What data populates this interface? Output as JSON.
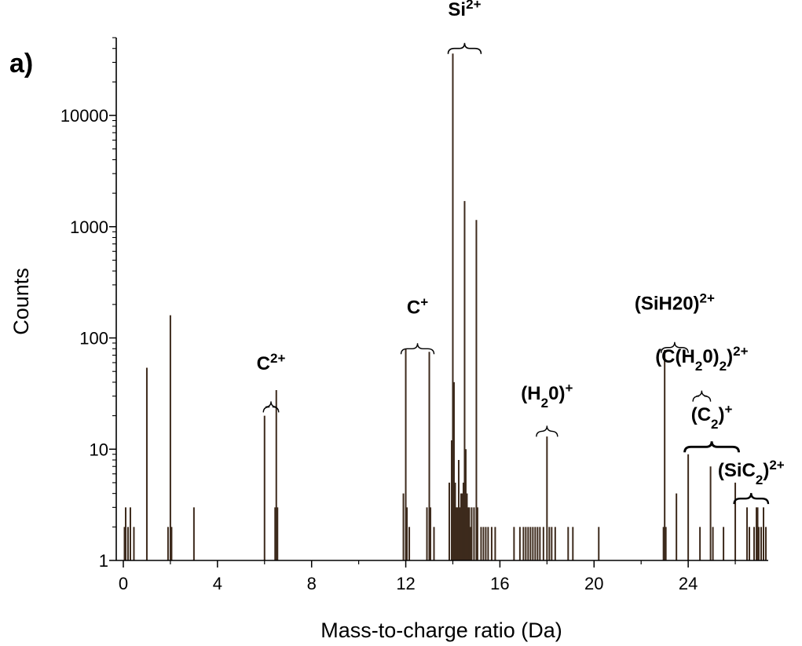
{
  "chart_data": {
    "type": "bar",
    "panel_label": "a)",
    "title": "",
    "xlabel": "Mass-to-charge ratio (Da)",
    "ylabel": "Counts",
    "xlim": [
      -0.3,
      27.4
    ],
    "ylim": [
      1,
      50000
    ],
    "y_scale": "log",
    "grid": false,
    "legend": "none",
    "bar_color": "#3d2a1c",
    "x_ticks": [
      0,
      4,
      8,
      12,
      16,
      20,
      24
    ],
    "x_tick_labels": [
      "0",
      "4",
      "8",
      "12",
      "16",
      "20",
      "24"
    ],
    "y_ticks": [
      1,
      10,
      100,
      1000,
      10000
    ],
    "y_tick_labels": [
      "1",
      "10",
      "100",
      "1000",
      "10000"
    ],
    "peaks": [
      {
        "x": 0.05,
        "y": 2
      },
      {
        "x": 0.1,
        "y": 3
      },
      {
        "x": 0.2,
        "y": 2
      },
      {
        "x": 0.3,
        "y": 3
      },
      {
        "x": 0.45,
        "y": 2
      },
      {
        "x": 1.0,
        "y": 54
      },
      {
        "x": 1.9,
        "y": 2
      },
      {
        "x": 2.0,
        "y": 160
      },
      {
        "x": 2.05,
        "y": 2
      },
      {
        "x": 3.0,
        "y": 3
      },
      {
        "x": 6.0,
        "y": 20
      },
      {
        "x": 6.45,
        "y": 3
      },
      {
        "x": 6.5,
        "y": 34
      },
      {
        "x": 6.55,
        "y": 3
      },
      {
        "x": 11.9,
        "y": 4
      },
      {
        "x": 12.0,
        "y": 80
      },
      {
        "x": 12.05,
        "y": 3
      },
      {
        "x": 12.15,
        "y": 2
      },
      {
        "x": 12.9,
        "y": 3
      },
      {
        "x": 13.0,
        "y": 75
      },
      {
        "x": 13.05,
        "y": 3
      },
      {
        "x": 13.2,
        "y": 2
      },
      {
        "x": 13.85,
        "y": 5
      },
      {
        "x": 13.95,
        "y": 12
      },
      {
        "x": 14.0,
        "y": 36000
      },
      {
        "x": 14.05,
        "y": 40
      },
      {
        "x": 14.1,
        "y": 5
      },
      {
        "x": 14.15,
        "y": 3
      },
      {
        "x": 14.2,
        "y": 3
      },
      {
        "x": 14.25,
        "y": 8
      },
      {
        "x": 14.3,
        "y": 3
      },
      {
        "x": 14.35,
        "y": 4
      },
      {
        "x": 14.4,
        "y": 4
      },
      {
        "x": 14.45,
        "y": 5
      },
      {
        "x": 14.5,
        "y": 1700
      },
      {
        "x": 14.55,
        "y": 10
      },
      {
        "x": 14.6,
        "y": 4
      },
      {
        "x": 14.65,
        "y": 3
      },
      {
        "x": 14.7,
        "y": 3
      },
      {
        "x": 14.75,
        "y": 2
      },
      {
        "x": 14.8,
        "y": 3
      },
      {
        "x": 14.9,
        "y": 3
      },
      {
        "x": 15.0,
        "y": 1150
      },
      {
        "x": 15.05,
        "y": 3
      },
      {
        "x": 15.2,
        "y": 2
      },
      {
        "x": 15.3,
        "y": 2
      },
      {
        "x": 15.4,
        "y": 2
      },
      {
        "x": 15.5,
        "y": 2
      },
      {
        "x": 15.65,
        "y": 2
      },
      {
        "x": 15.8,
        "y": 2
      },
      {
        "x": 16.6,
        "y": 2
      },
      {
        "x": 16.85,
        "y": 2
      },
      {
        "x": 17.0,
        "y": 2
      },
      {
        "x": 17.1,
        "y": 2
      },
      {
        "x": 17.2,
        "y": 2
      },
      {
        "x": 17.3,
        "y": 2
      },
      {
        "x": 17.4,
        "y": 2
      },
      {
        "x": 17.5,
        "y": 2
      },
      {
        "x": 17.6,
        "y": 2
      },
      {
        "x": 17.7,
        "y": 2
      },
      {
        "x": 17.85,
        "y": 2
      },
      {
        "x": 18.0,
        "y": 13
      },
      {
        "x": 18.1,
        "y": 2
      },
      {
        "x": 18.2,
        "y": 2
      },
      {
        "x": 18.35,
        "y": 2
      },
      {
        "x": 18.9,
        "y": 2
      },
      {
        "x": 19.1,
        "y": 2
      },
      {
        "x": 20.2,
        "y": 2
      },
      {
        "x": 22.95,
        "y": 2
      },
      {
        "x": 23.0,
        "y": 78
      },
      {
        "x": 23.05,
        "y": 2
      },
      {
        "x": 23.5,
        "y": 4
      },
      {
        "x": 24.0,
        "y": 9
      },
      {
        "x": 24.5,
        "y": 2
      },
      {
        "x": 24.95,
        "y": 7
      },
      {
        "x": 25.05,
        "y": 2
      },
      {
        "x": 25.5,
        "y": 2
      },
      {
        "x": 26.0,
        "y": 5
      },
      {
        "x": 26.5,
        "y": 3
      },
      {
        "x": 26.6,
        "y": 2
      },
      {
        "x": 26.8,
        "y": 2
      },
      {
        "x": 26.9,
        "y": 3
      },
      {
        "x": 26.95,
        "y": 3
      },
      {
        "x": 27.0,
        "y": 2
      },
      {
        "x": 27.1,
        "y": 2
      },
      {
        "x": 27.2,
        "y": 3
      },
      {
        "x": 27.3,
        "y": 2
      }
    ],
    "annotations": [
      {
        "id": "c2plus",
        "base": "C",
        "parts": [
          {
            "t": "C"
          },
          {
            "t": "2+",
            "s": "sup"
          }
        ],
        "x_from": 5.95,
        "x_to": 6.6,
        "brace_y": 24,
        "text_y": 52,
        "brace_weight": 1
      },
      {
        "id": "cplus",
        "base": "C",
        "parts": [
          {
            "t": "C"
          },
          {
            "t": "+",
            "s": "sup"
          }
        ],
        "x_from": 11.8,
        "x_to": 13.2,
        "brace_y": 80,
        "text_y": 165,
        "brace_weight": 1
      },
      {
        "id": "si2plus",
        "base": "Si",
        "parts": [
          {
            "t": "Si"
          },
          {
            "t": "2+",
            "s": "sup"
          }
        ],
        "x_from": 13.8,
        "x_to": 15.2,
        "brace_y": 40000,
        "text_y": 79000,
        "brace_weight": 1.2
      },
      {
        "id": "h2oplus",
        "base": "(H",
        "parts": [
          {
            "t": "(H"
          },
          {
            "t": "2",
            "s": "sub"
          },
          {
            "t": "0)"
          },
          {
            "t": "+",
            "s": "sup"
          }
        ],
        "x_from": 17.55,
        "x_to": 18.45,
        "brace_y": 14.5,
        "text_y": 28,
        "brace_weight": 1
      },
      {
        "id": "sih2o",
        "base": "(SiH",
        "parts": [
          {
            "t": "(SiH"
          },
          {
            "t": "2"
          },
          {
            "t": "0)"
          },
          {
            "t": "2+",
            "s": "sup"
          }
        ],
        "x_from": 22.85,
        "x_to": 24.0,
        "brace_y": 82,
        "text_y": 180,
        "brace_weight": 1
      },
      {
        "id": "ch2o2",
        "base": "(C(H",
        "parts": [
          {
            "t": "(C(H"
          },
          {
            "t": "2",
            "s": "sub"
          },
          {
            "t": "0)"
          },
          {
            "t": "2",
            "s": "sub"
          },
          {
            "t": ")"
          },
          {
            "t": "2+",
            "s": "sup"
          }
        ],
        "x_from": 24.2,
        "x_to": 24.95,
        "brace_y": 30,
        "text_y": 60,
        "brace_weight": 1
      },
      {
        "id": "c2",
        "base": "(C",
        "parts": [
          {
            "t": "(C"
          },
          {
            "t": "2",
            "s": "sub"
          },
          {
            "t": ")"
          },
          {
            "t": "+",
            "s": "sup"
          }
        ],
        "x_from": 23.85,
        "x_to": 26.15,
        "brace_y": 10.5,
        "text_y": 18,
        "brace_weight": 2.5
      },
      {
        "id": "sic2",
        "base": "(SiC",
        "parts": [
          {
            "t": "(SiC"
          },
          {
            "t": "2",
            "s": "sub"
          },
          {
            "t": ")"
          },
          {
            "t": "2+",
            "s": "sup"
          }
        ],
        "x_from": 25.95,
        "x_to": 27.4,
        "brace_y": 3.6,
        "text_y": 5.7,
        "brace_weight": 2
      }
    ]
  }
}
